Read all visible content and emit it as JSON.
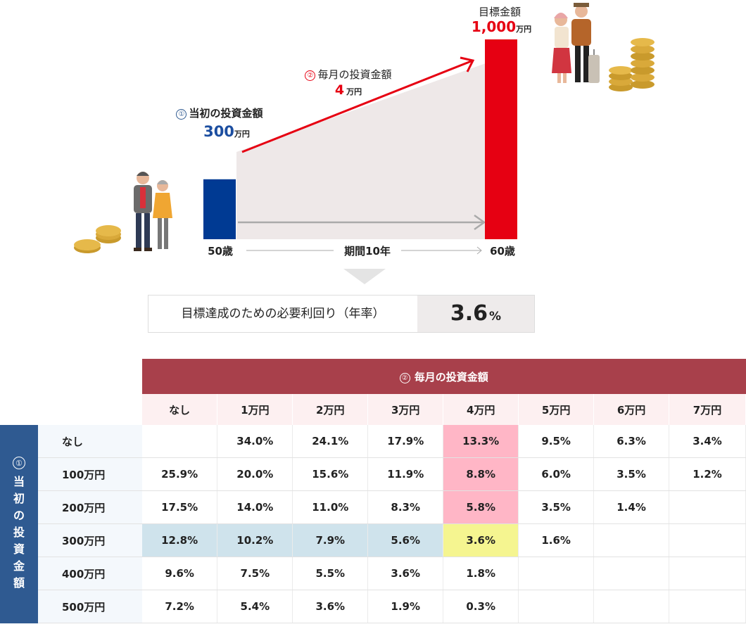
{
  "chart_data": [
    {
      "type": "bar",
      "categories": [
        "50歳",
        "60歳"
      ],
      "period_label": "期間10年",
      "initial": {
        "circle": "①",
        "label": "当初の投資金額",
        "value": "300",
        "unit": "万円"
      },
      "monthly": {
        "circle": "②",
        "label": "毎月の投資金額",
        "value": "4",
        "unit": "万円"
      },
      "target": {
        "label": "目標金額",
        "value": "1,000",
        "unit": "万円"
      },
      "values": [
        300,
        1000
      ],
      "colors": {
        "initial_bar": "#003a93",
        "target_bar": "#e60012",
        "arrow": "#e60012",
        "area": "#eee8e8"
      }
    },
    {
      "type": "table",
      "result": {
        "label": "目標達成のための必要利回り（年率）",
        "value": "3.6",
        "unit": "%"
      },
      "col_group": {
        "circle": "②",
        "title": "毎月の投資金額"
      },
      "row_group": {
        "circle": "①",
        "title": "当初の投資金額"
      },
      "columns": [
        "なし",
        "1万円",
        "2万円",
        "3万円",
        "4万円",
        "5万円",
        "6万円",
        "7万円"
      ],
      "rows": [
        {
          "label": "なし",
          "cells": [
            "",
            "34.0%",
            "24.1%",
            "17.9%",
            "13.3%",
            "9.5%",
            "6.3%",
            "3.4%"
          ]
        },
        {
          "label": "100万円",
          "cells": [
            "25.9%",
            "20.0%",
            "15.6%",
            "11.9%",
            "8.8%",
            "6.0%",
            "3.5%",
            "1.2%"
          ]
        },
        {
          "label": "200万円",
          "cells": [
            "17.5%",
            "14.0%",
            "11.0%",
            "8.3%",
            "5.8%",
            "3.5%",
            "1.4%",
            ""
          ]
        },
        {
          "label": "300万円",
          "cells": [
            "12.8%",
            "10.2%",
            "7.9%",
            "5.6%",
            "3.6%",
            "1.6%",
            "",
            ""
          ]
        },
        {
          "label": "400万円",
          "cells": [
            "9.6%",
            "7.5%",
            "5.5%",
            "3.6%",
            "1.8%",
            "",
            "",
            ""
          ]
        },
        {
          "label": "500万円",
          "cells": [
            "7.2%",
            "5.4%",
            "3.6%",
            "1.9%",
            "0.3%",
            "",
            "",
            ""
          ]
        }
      ],
      "colors": {
        "header": "#a8404b",
        "side": "#2f5a91",
        "highlight_column": "#ffb6c6",
        "highlight_row": "#cfe3ec",
        "highlight_cell": "#f5f590"
      }
    }
  ]
}
